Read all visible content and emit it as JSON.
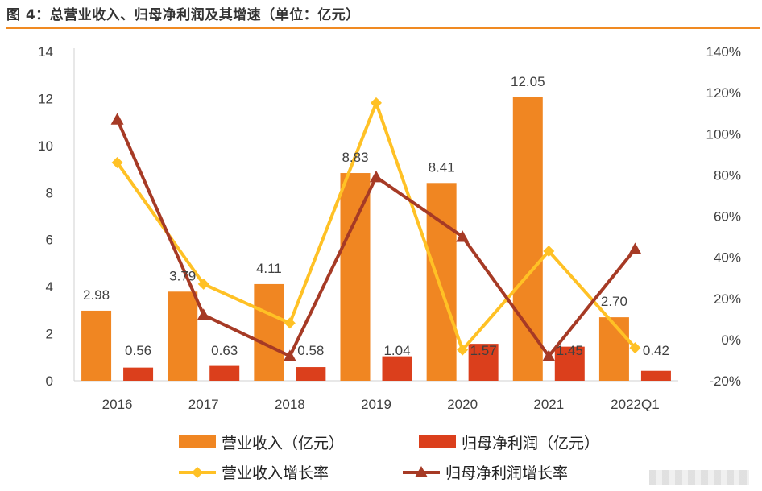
{
  "page": {
    "title": "图 4：总营业收入、归母净利润及其增速（单位：亿元）"
  },
  "colors": {
    "revenue_bar": "#f08622",
    "profit_bar": "#db3f1c",
    "revenue_growth_line": "#ffc125",
    "profit_growth_line": "#a63a25",
    "rule": "#f08a22"
  },
  "chart_data": {
    "type": "bar",
    "title": "总营业收入、归母净利润及其增速（单位：亿元）",
    "categories": [
      "2016",
      "2017",
      "2018",
      "2019",
      "2020",
      "2021",
      "2022Q1"
    ],
    "left_axis": {
      "min": 0,
      "max": 14,
      "step": 2,
      "ticks": [
        "0",
        "2",
        "4",
        "6",
        "8",
        "10",
        "12",
        "14"
      ]
    },
    "right_axis": {
      "min": -20,
      "max": 140,
      "step": 20,
      "ticks": [
        "-20%",
        "0%",
        "20%",
        "40%",
        "60%",
        "80%",
        "100%",
        "120%",
        "140%"
      ]
    },
    "series": [
      {
        "name": "营业收入（亿元）",
        "kind": "bar",
        "axis": "left",
        "values": [
          2.98,
          3.79,
          4.11,
          8.83,
          8.41,
          12.05,
          2.7
        ],
        "labels": [
          "2.98",
          "3.79",
          "4.11",
          "8.83",
          "8.41",
          "12.05",
          "2.70"
        ]
      },
      {
        "name": "归母净利润（亿元）",
        "kind": "bar",
        "axis": "left",
        "values": [
          0.56,
          0.63,
          0.58,
          1.04,
          1.57,
          1.45,
          0.42
        ],
        "labels": [
          "0.56",
          "0.63",
          "0.58",
          "1.04",
          "1.57",
          "1.45",
          "0.42"
        ]
      },
      {
        "name": "营业收入增长率",
        "kind": "line",
        "axis": "right",
        "marker": "diamond",
        "values": [
          86,
          27,
          8,
          115,
          -5,
          43,
          -4
        ]
      },
      {
        "name": "归母净利润增长率",
        "kind": "line",
        "axis": "right",
        "marker": "triangle",
        "values": [
          107,
          12,
          -8,
          79,
          50,
          -8,
          44
        ]
      }
    ],
    "legend": {
      "position": "bottom",
      "items": [
        "营业收入（亿元）",
        "归母净利润（亿元）",
        "营业收入增长率",
        "归母净利润增长率"
      ]
    }
  }
}
